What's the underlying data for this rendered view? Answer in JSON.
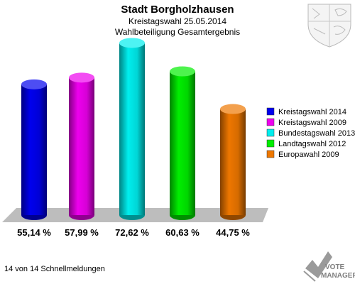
{
  "chart_data": {
    "type": "bar",
    "title": "Stadt Borgholzhausen",
    "subtitle": "Kreistagswahl 25.05.2014",
    "subtitle2": "Wahlbeteiligung Gesamtergebnis",
    "categories": [
      "Kreistagswahl 2014",
      "Kreistagswahl 2009",
      "Bundestagswahl 2013",
      "Landtagswahl 2012",
      "Europawahl 2009"
    ],
    "values": [
      55.14,
      57.99,
      72.62,
      60.63,
      44.75
    ],
    "value_labels": [
      "55,14 %",
      "57,99 %",
      "72,62 %",
      "60,63 %",
      "44,75 %"
    ],
    "colors": [
      "#0000ee",
      "#ee00ee",
      "#00eeee",
      "#00ee00",
      "#ee7700"
    ],
    "ylim": [
      0,
      80
    ],
    "legend_position": "right",
    "grid": false
  },
  "footer": {
    "status": "14 von 14 Schnellmeldungen"
  },
  "logo": {
    "line1": "VOTE",
    "line2": "MANAGER",
    "icon": "votemanager-check-icon"
  },
  "crest": {
    "icon": "coat-of-arms-icon"
  }
}
